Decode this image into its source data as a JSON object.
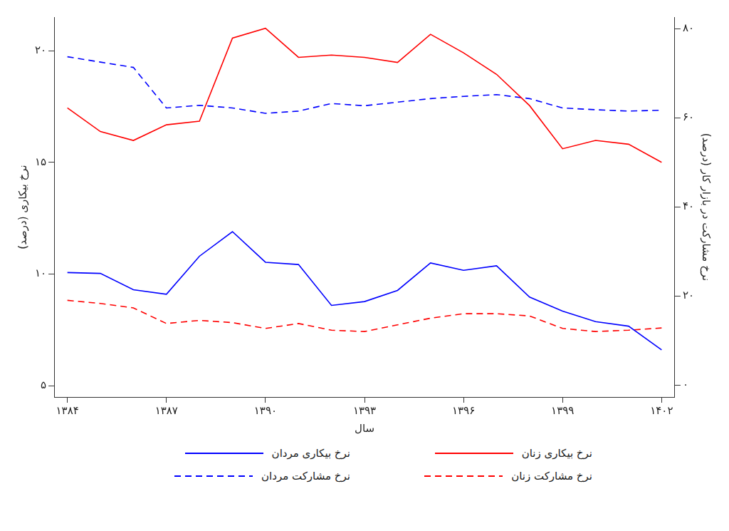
{
  "chart_data": {
    "type": "line",
    "x_label": "سال",
    "y_label": "نرخ بیکاری (درصد)",
    "y2_label": "نرخ مشارکت در بازار کار (درصد)",
    "x": [
      1384,
      1385,
      1386,
      1387,
      1388,
      1389,
      1390,
      1391,
      1392,
      1393,
      1394,
      1395,
      1396,
      1397,
      1398,
      1399,
      1400,
      1401,
      1402
    ],
    "xlim": [
      1383.6,
      1402.4
    ],
    "xticks": [
      {
        "value": 1384,
        "label": "۱۳۸۴"
      },
      {
        "value": 1387,
        "label": "۱۳۸۷"
      },
      {
        "value": 1390,
        "label": "۱۳۹۰"
      },
      {
        "value": 1393,
        "label": "۱۳۹۳"
      },
      {
        "value": 1396,
        "label": "۱۳۹۶"
      },
      {
        "value": 1399,
        "label": "۱۳۹۹"
      },
      {
        "value": 1402,
        "label": "۱۴۰۲"
      }
    ],
    "ylim": [
      4.5,
      21.5
    ],
    "yticks": [
      {
        "value": 5,
        "label": "۵"
      },
      {
        "value": 10,
        "label": "۱۰"
      },
      {
        "value": 15,
        "label": "۱۵"
      },
      {
        "value": 20,
        "label": "۲۰"
      }
    ],
    "y2lim": [
      -2.7,
      82.6
    ],
    "y2ticks": [
      {
        "value": 0,
        "label": "۰"
      },
      {
        "value": 20,
        "label": "۲۰"
      },
      {
        "value": 40,
        "label": "۴۰"
      },
      {
        "value": 60,
        "label": "۶۰"
      },
      {
        "value": 80,
        "label": "۸۰"
      }
    ],
    "grid": false,
    "legend": "bottom",
    "series": [
      {
        "name": "نرخ بیکاری زنان",
        "color": "#ff0000",
        "line_style": "solid",
        "values": [
          17.44,
          16.38,
          15.98,
          16.68,
          16.84,
          20.56,
          21.0,
          19.7,
          19.8,
          19.7,
          19.47,
          20.73,
          19.9,
          18.94,
          17.54,
          15.61,
          15.98,
          15.81,
          15.0
        ]
      },
      {
        "name": "نرخ بیکاری مردان",
        "color": "#0000ff",
        "line_style": "solid",
        "values": [
          10.07,
          10.03,
          9.3,
          9.1,
          10.8,
          11.9,
          10.53,
          10.43,
          8.6,
          8.77,
          9.27,
          10.5,
          10.17,
          10.37,
          8.97,
          8.34,
          7.87,
          7.67,
          6.61
        ]
      },
      {
        "name": "نرخ مشارکت زنان",
        "color": "#ff0000",
        "line_style": "dashed",
        "axis": "y2",
        "values": [
          19.0,
          18.3,
          17.3,
          13.8,
          14.5,
          14.0,
          12.7,
          13.8,
          12.3,
          12.0,
          13.5,
          15.0,
          16.0,
          16.0,
          15.5,
          12.7,
          12.0,
          12.3,
          12.8
        ]
      },
      {
        "name": "نرخ مشارکت مردان",
        "color": "#0000ff",
        "line_style": "dashed",
        "axis": "y2",
        "values": [
          73.7,
          72.5,
          71.3,
          62.2,
          62.8,
          62.2,
          61.0,
          61.5,
          63.2,
          62.7,
          63.5,
          64.3,
          64.8,
          65.2,
          64.3,
          62.2,
          61.8,
          61.5,
          61.7
        ]
      }
    ]
  }
}
